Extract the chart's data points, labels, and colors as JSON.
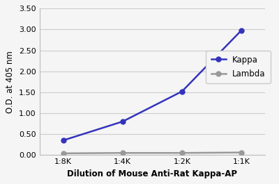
{
  "x_labels": [
    "1:8K",
    "1:4K",
    "1:2K",
    "1:1K"
  ],
  "x_values": [
    0,
    1,
    2,
    3
  ],
  "kappa_values": [
    0.35,
    0.8,
    1.52,
    2.98
  ],
  "lambda_values": [
    0.04,
    0.05,
    0.05,
    0.06
  ],
  "kappa_color": "#3333bb",
  "lambda_color": "#999999",
  "kappa_label": "Kappa",
  "lambda_label": "Lambda",
  "xlabel": "Dilution of Mouse Anti-Rat Kappa-AP",
  "ylabel": "O.D. at 405 nm",
  "ylim": [
    0.0,
    3.5
  ],
  "yticks": [
    0.0,
    0.5,
    1.0,
    1.5,
    2.0,
    2.5,
    3.0,
    3.5
  ],
  "background_color": "#f5f5f5",
  "plot_bg_color": "#f5f5f5",
  "grid_color": "#cccccc",
  "line_width": 1.8,
  "marker_size": 5,
  "xlabel_fontsize": 8.5,
  "ylabel_fontsize": 8.5,
  "tick_fontsize": 8,
  "legend_fontsize": 8.5
}
